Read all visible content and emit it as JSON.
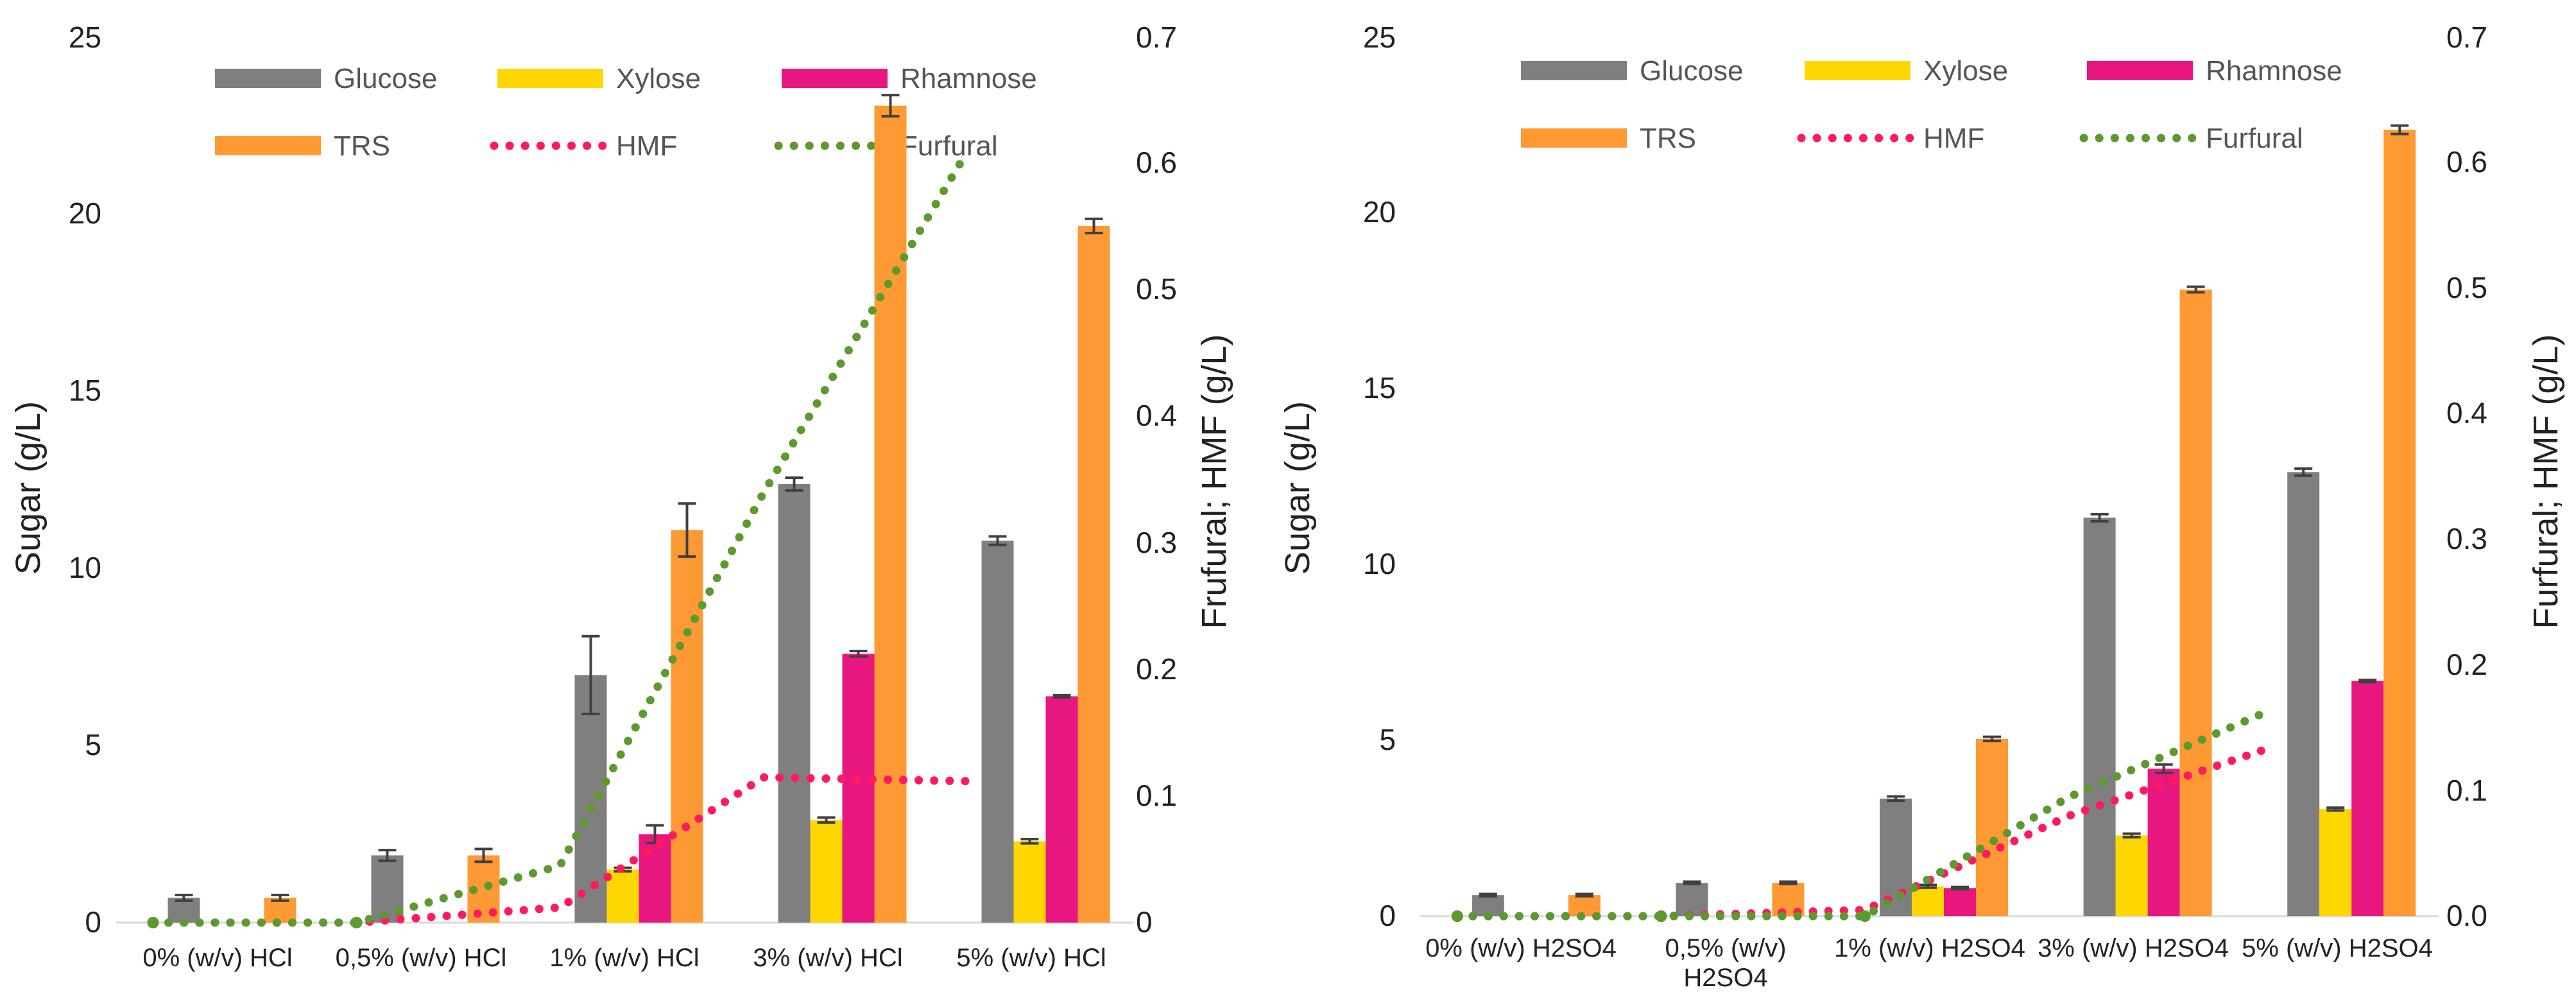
{
  "chart_data": [
    {
      "type": "bar",
      "panel": "left",
      "categories": [
        "0% (w/v) HCl",
        "0,5% (w/v) HCl",
        "1% (w/v) HCl",
        "3% (w/v) HCl",
        "5% (w/v) HCl"
      ],
      "series": [
        {
          "name": "Glucose",
          "color": "#7f7f7f",
          "values": [
            0.7,
            1.9,
            7.0,
            12.4,
            10.8
          ],
          "errors": [
            0.08,
            0.15,
            1.1,
            0.18,
            0.12
          ]
        },
        {
          "name": "Xylose",
          "color": "#ffd700",
          "values": [
            0.0,
            0.0,
            1.5,
            2.9,
            2.3
          ],
          "errors": [
            0,
            0,
            0.05,
            0.07,
            0.06
          ]
        },
        {
          "name": "Rhamnose",
          "color": "#e8177f",
          "values": [
            0.0,
            0.0,
            2.5,
            7.6,
            6.4
          ],
          "errors": [
            0,
            0,
            0.25,
            0.08,
            0.03
          ]
        },
        {
          "name": "TRS",
          "color": "#ff9933",
          "values": [
            0.7,
            1.9,
            11.1,
            23.1,
            19.7
          ],
          "errors": [
            0.08,
            0.18,
            0.75,
            0.3,
            0.2
          ]
        }
      ],
      "lines": [
        {
          "name": "HMF",
          "color": "#ff1a5e",
          "values": [
            0.0,
            0.0,
            0.012,
            0.115,
            0.112
          ]
        },
        {
          "name": "Furfural",
          "color": "#5c9a2e",
          "values": [
            0.0,
            0.0,
            0.045,
            0.34,
            0.61
          ]
        }
      ],
      "ylabel": "Sugar  (g/L)",
      "y2label": "Frufural; HMF (g/L)",
      "ylim": [
        0,
        25
      ],
      "y2lim": [
        0,
        0.7
      ],
      "yticks": [
        "0",
        "5",
        "10",
        "15",
        "20",
        "25"
      ],
      "y2ticks": [
        "0",
        "0.1",
        "0.2",
        "0.3",
        "0.4",
        "0.5",
        "0.6",
        "0.7"
      ],
      "legend": [
        "Glucose",
        "Xylose",
        "Rhamnose",
        "TRS",
        "HMF",
        "Furfural"
      ]
    },
    {
      "type": "bar",
      "panel": "right",
      "categories": [
        "0% (w/v) H2SO4",
        "0,5% (w/v)\nH2SO4",
        "1% (w/v) H2SO4",
        "3% (w/v) H2SO4",
        "5% (w/v) H2SO4"
      ],
      "series": [
        {
          "name": "Glucose",
          "color": "#7f7f7f",
          "values": [
            0.6,
            0.95,
            3.35,
            11.35,
            12.65
          ],
          "errors": [
            0.03,
            0.03,
            0.06,
            0.1,
            0.1
          ]
        },
        {
          "name": "Xylose",
          "color": "#ffd700",
          "values": [
            0.0,
            0.0,
            0.85,
            2.3,
            3.05
          ],
          "errors": [
            0,
            0,
            0.04,
            0.05,
            0.04
          ]
        },
        {
          "name": "Rhamnose",
          "color": "#e8177f",
          "values": [
            0.0,
            0.0,
            0.8,
            4.2,
            6.7
          ],
          "errors": [
            0,
            0,
            0.03,
            0.12,
            0.03
          ]
        },
        {
          "name": "TRS",
          "color": "#ff9933",
          "values": [
            0.6,
            0.95,
            5.05,
            17.85,
            22.4
          ],
          "errors": [
            0.03,
            0.03,
            0.06,
            0.08,
            0.12
          ]
        }
      ],
      "lines": [
        {
          "name": "HMF",
          "color": "#ff1a5e",
          "values": [
            0.0,
            0.0,
            0.005,
            0.08,
            0.135
          ]
        },
        {
          "name": "Furfural",
          "color": "#5c9a2e",
          "values": [
            0.0,
            0.0,
            0.0,
            0.095,
            0.165
          ]
        }
      ],
      "ylabel": "Sugar  (g/L)",
      "y2label": "Furfural; HMF (g/L)",
      "ylim": [
        0,
        25
      ],
      "y2lim": [
        0,
        0.7
      ],
      "yticks": [
        "0",
        "5",
        "10",
        "15",
        "20",
        "25"
      ],
      "y2ticks": [
        "0.0",
        "0.1",
        "0.2",
        "0.3",
        "0.4",
        "0.5",
        "0.6",
        "0.7"
      ],
      "legend": [
        "Glucose",
        "Xylose",
        "Rhamnose",
        "TRS",
        "HMF",
        "Furfural"
      ]
    }
  ]
}
